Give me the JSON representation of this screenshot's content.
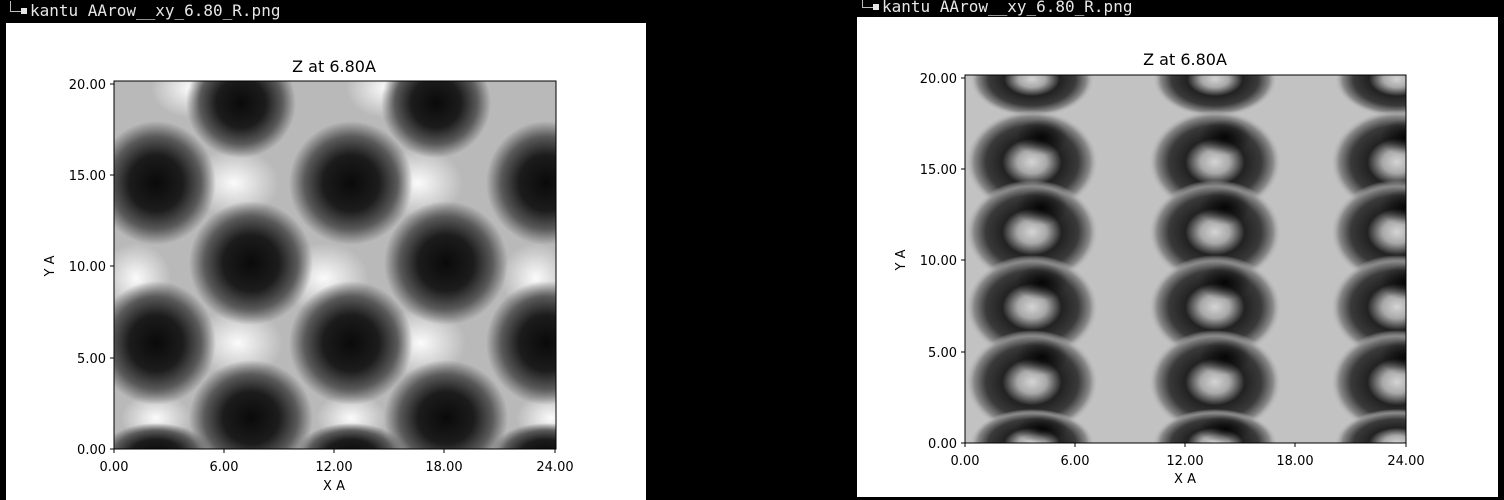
{
  "windows": [
    {
      "caption": "kantu AArow__xy_6.80_R.png",
      "chart_data": {
        "type": "heatmap",
        "title": "Z at 6.80A",
        "xlabel": "X A",
        "ylabel": "Y A",
        "xlim": [
          0,
          24
        ],
        "ylim": [
          0,
          20
        ],
        "x_ticks": [
          "0.00",
          "6.00",
          "12.00",
          "18.00",
          "24.00"
        ],
        "y_ticks": [
          "0.00",
          "5.00",
          "10.00",
          "15.00",
          "20.00"
        ],
        "colormap": "grayscale",
        "grid": false,
        "pattern": "diagonal lattice of dark elliptical wells separated by bright ridges"
      }
    },
    {
      "caption": "kantu AArow__xy_6.80_R.png",
      "chart_data": {
        "type": "heatmap",
        "title": "Z at 6.80A",
        "xlabel": "X A",
        "ylabel": "Y A",
        "xlim": [
          0,
          24
        ],
        "ylim": [
          0,
          20
        ],
        "x_ticks": [
          "0.00",
          "6.00",
          "12.00",
          "18.00",
          "24.00"
        ],
        "y_ticks": [
          "0.00",
          "5.00",
          "10.00",
          "15.00",
          "20.00"
        ],
        "colormap": "grayscale",
        "grid": false,
        "pattern": "rectangular lattice of dark rings with bright centers on gray background"
      }
    }
  ]
}
